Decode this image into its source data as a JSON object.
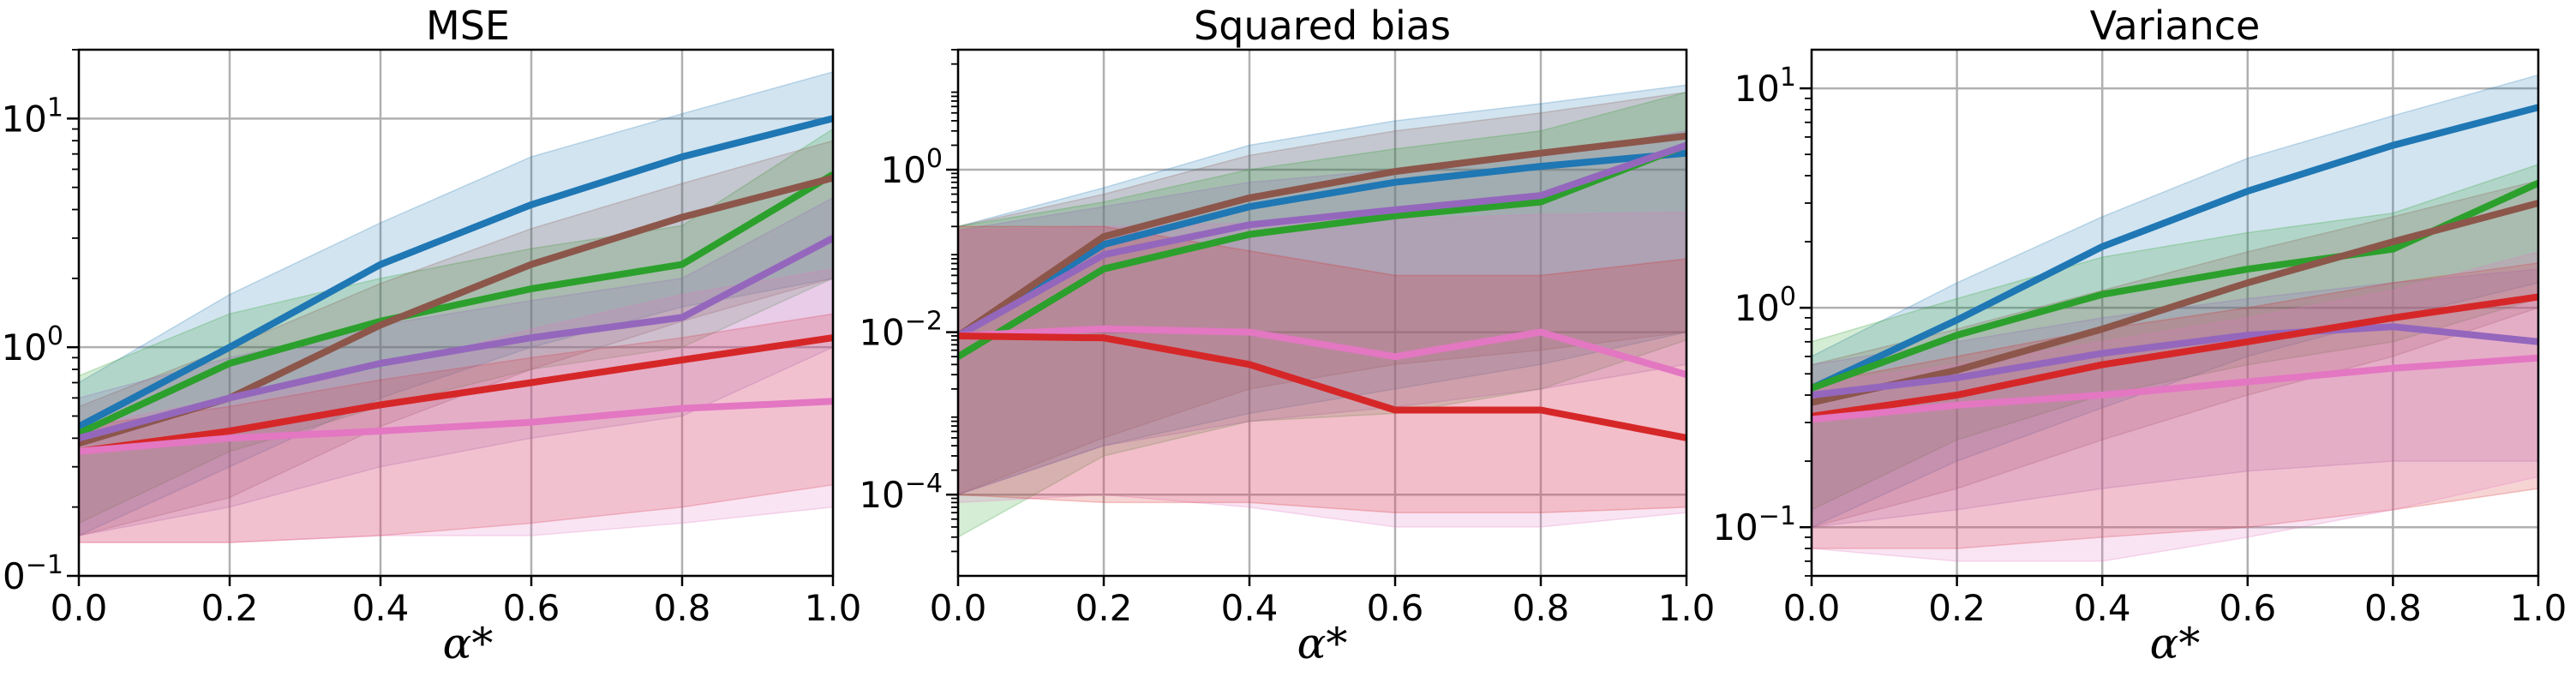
{
  "figure": {
    "panels": [
      {
        "title": "MSE",
        "xlabel": "α*",
        "y_ticks": [
          {
            "base": "10",
            "exp": "−1",
            "value": 0.1
          },
          {
            "base": "10",
            "exp": "0",
            "value": 1
          },
          {
            "base": "10",
            "exp": "1",
            "value": 10
          }
        ]
      },
      {
        "title": "Squared bias",
        "xlabel": "α*",
        "y_ticks": [
          {
            "base": "10",
            "exp": "−4",
            "value": 0.0001
          },
          {
            "base": "10",
            "exp": "−2",
            "value": 0.01
          },
          {
            "base": "10",
            "exp": "0",
            "value": 1
          }
        ]
      },
      {
        "title": "Variance",
        "xlabel": "α*",
        "y_ticks": [
          {
            "base": "10",
            "exp": "−1",
            "value": 0.1
          },
          {
            "base": "10",
            "exp": "0",
            "value": 1
          },
          {
            "base": "10",
            "exp": "1",
            "value": 10
          }
        ]
      }
    ],
    "x_tick_labels": [
      "0.0",
      "0.2",
      "0.4",
      "0.6",
      "0.8",
      "1.0"
    ]
  },
  "chart_data": [
    {
      "type": "line",
      "title": "MSE",
      "xlabel": "α*",
      "ylabel": "",
      "yscale": "log",
      "xlim": [
        0.0,
        1.0
      ],
      "ylim": [
        0.1,
        20
      ],
      "grid": true,
      "x": [
        0.0,
        0.2,
        0.4,
        0.6,
        0.8,
        1.0
      ],
      "series": [
        {
          "color": "#1f77b4",
          "values": [
            0.45,
            1.0,
            2.3,
            4.2,
            6.8,
            10.0
          ],
          "band": {
            "lower": [
              0.15,
              0.3,
              0.6,
              1.0,
              1.5,
              2.0
            ],
            "upper": [
              0.7,
              1.7,
              3.5,
              6.8,
              10.5,
              16.0
            ]
          }
        },
        {
          "color": "#2ca02c",
          "values": [
            0.42,
            0.85,
            1.3,
            1.8,
            2.3,
            5.7
          ],
          "band": {
            "lower": [
              0.17,
              0.35,
              0.55,
              0.8,
              1.0,
              2.0
            ],
            "upper": [
              0.75,
              1.4,
              2.0,
              2.7,
              3.4,
              9.0
            ]
          }
        },
        {
          "color": "#8c564b",
          "values": [
            0.38,
            0.6,
            1.25,
            2.3,
            3.7,
            5.5
          ],
          "band": {
            "lower": [
              0.15,
              0.22,
              0.45,
              0.8,
              1.3,
              2.0
            ],
            "upper": [
              0.55,
              1.0,
              1.9,
              3.3,
              5.2,
              8.0
            ]
          }
        },
        {
          "color": "#9467bd",
          "values": [
            0.4,
            0.6,
            0.85,
            1.1,
            1.35,
            3.0
          ],
          "band": {
            "lower": [
              0.15,
              0.2,
              0.3,
              0.4,
              0.5,
              1.0
            ],
            "upper": [
              0.6,
              0.9,
              1.25,
              1.6,
              2.0,
              4.5
            ]
          }
        },
        {
          "color": "#d62728",
          "values": [
            0.35,
            0.43,
            0.56,
            0.7,
            0.88,
            1.1
          ],
          "band": {
            "lower": [
              0.14,
              0.14,
              0.15,
              0.17,
              0.2,
              0.25
            ],
            "upper": [
              0.45,
              0.55,
              0.72,
              0.9,
              1.1,
              1.4
            ]
          }
        },
        {
          "color": "#e377c2",
          "values": [
            0.35,
            0.4,
            0.43,
            0.47,
            0.54,
            0.58
          ],
          "band": {
            "lower": [
              0.14,
              0.14,
              0.15,
              0.15,
              0.17,
              0.2
            ],
            "upper": [
              0.45,
              0.6,
              0.8,
              1.2,
              1.7,
              2.2
            ]
          }
        }
      ]
    },
    {
      "type": "line",
      "title": "Squared bias",
      "xlabel": "α*",
      "ylabel": "",
      "yscale": "log",
      "xlim": [
        0.0,
        1.0
      ],
      "ylim": [
        1e-05,
        30
      ],
      "grid": true,
      "x": [
        0.0,
        0.2,
        0.4,
        0.6,
        0.8,
        1.0
      ],
      "series": [
        {
          "color": "#1f77b4",
          "values": [
            0.009,
            0.12,
            0.35,
            0.7,
            1.1,
            1.6
          ],
          "band": {
            "lower": [
              0.0001,
              0.0004,
              0.001,
              0.002,
              0.004,
              0.01
            ],
            "upper": [
              0.2,
              0.6,
              2.0,
              4.0,
              6.5,
              11.0
            ]
          }
        },
        {
          "color": "#8c564b",
          "values": [
            0.009,
            0.15,
            0.45,
            0.95,
            1.6,
            2.6
          ],
          "band": {
            "lower": [
              0.0001,
              0.0005,
              0.002,
              0.004,
              0.006,
              0.01
            ],
            "upper": [
              0.2,
              0.5,
              1.5,
              3.0,
              5.0,
              9.0
            ]
          }
        },
        {
          "color": "#2ca02c",
          "values": [
            0.005,
            0.06,
            0.16,
            0.27,
            0.4,
            2.0
          ],
          "band": {
            "lower": [
              3e-05,
              0.0003,
              0.0008,
              0.001,
              0.002,
              0.008
            ],
            "upper": [
              0.2,
              0.4,
              1.0,
              1.8,
              3.0,
              9.0
            ]
          }
        },
        {
          "color": "#9467bd",
          "values": [
            0.009,
            0.09,
            0.21,
            0.32,
            0.48,
            2.0
          ],
          "band": {
            "lower": [
              0.0001,
              0.0004,
              0.0008,
              0.0012,
              0.002,
              0.004
            ],
            "upper": [
              0.18,
              0.35,
              0.7,
              1.0,
              1.5,
              3.0
            ]
          }
        },
        {
          "color": "#e377c2",
          "values": [
            0.009,
            0.011,
            0.01,
            0.005,
            0.01,
            0.003
          ],
          "band": {
            "lower": [
              8e-05,
              0.0001,
              7e-05,
              4e-05,
              4e-05,
              6e-05
            ],
            "upper": [
              0.18,
              0.2,
              0.22,
              0.25,
              0.28,
              0.3
            ]
          }
        },
        {
          "color": "#d62728",
          "values": [
            0.009,
            0.0085,
            0.004,
            0.0011,
            0.0011,
            0.0005
          ],
          "band": {
            "lower": [
              0.0001,
              8e-05,
              8e-05,
              6e-05,
              6e-05,
              7e-05
            ],
            "upper": [
              0.2,
              0.2,
              0.1,
              0.05,
              0.05,
              0.08
            ]
          }
        }
      ]
    },
    {
      "type": "line",
      "title": "Variance",
      "xlabel": "α*",
      "ylabel": "",
      "yscale": "log",
      "xlim": [
        0.0,
        1.0
      ],
      "ylim": [
        0.06,
        15
      ],
      "grid": true,
      "x": [
        0.0,
        0.2,
        0.4,
        0.6,
        0.8,
        1.0
      ],
      "series": [
        {
          "color": "#1f77b4",
          "values": [
            0.43,
            0.88,
            1.9,
            3.4,
            5.5,
            8.2
          ],
          "band": {
            "lower": [
              0.1,
              0.2,
              0.35,
              0.6,
              0.9,
              1.3
            ],
            "upper": [
              0.6,
              1.3,
              2.6,
              4.8,
              7.5,
              11.5
            ]
          }
        },
        {
          "color": "#2ca02c",
          "values": [
            0.43,
            0.75,
            1.15,
            1.5,
            1.85,
            3.7
          ],
          "band": {
            "lower": [
              0.12,
              0.25,
              0.4,
              0.55,
              0.7,
              1.1
            ],
            "upper": [
              0.7,
              1.1,
              1.7,
              2.2,
              2.7,
              4.5
            ]
          }
        },
        {
          "color": "#8c564b",
          "values": [
            0.37,
            0.52,
            0.8,
            1.3,
            2.0,
            3.0
          ],
          "band": {
            "lower": [
              0.1,
              0.15,
              0.25,
              0.4,
              0.6,
              1.0
            ],
            "upper": [
              0.55,
              0.8,
              1.2,
              1.8,
              2.6,
              3.8
            ]
          }
        },
        {
          "color": "#9467bd",
          "values": [
            0.4,
            0.48,
            0.62,
            0.75,
            0.82,
            0.7
          ],
          "band": {
            "lower": [
              0.1,
              0.12,
              0.15,
              0.18,
              0.2,
              0.2
            ],
            "upper": [
              0.55,
              0.7,
              0.9,
              1.1,
              1.3,
              1.5
            ]
          }
        },
        {
          "color": "#d62728",
          "values": [
            0.32,
            0.4,
            0.55,
            0.7,
            0.9,
            1.12
          ],
          "band": {
            "lower": [
              0.08,
              0.08,
              0.09,
              0.1,
              0.12,
              0.15
            ],
            "upper": [
              0.45,
              0.6,
              0.8,
              1.0,
              1.3,
              1.6
            ]
          }
        },
        {
          "color": "#e377c2",
          "values": [
            0.31,
            0.36,
            0.4,
            0.46,
            0.53,
            0.59
          ],
          "band": {
            "lower": [
              0.08,
              0.07,
              0.07,
              0.09,
              0.12,
              0.17
            ],
            "upper": [
              0.45,
              0.55,
              0.7,
              0.9,
              1.2,
              1.8
            ]
          }
        }
      ]
    }
  ]
}
